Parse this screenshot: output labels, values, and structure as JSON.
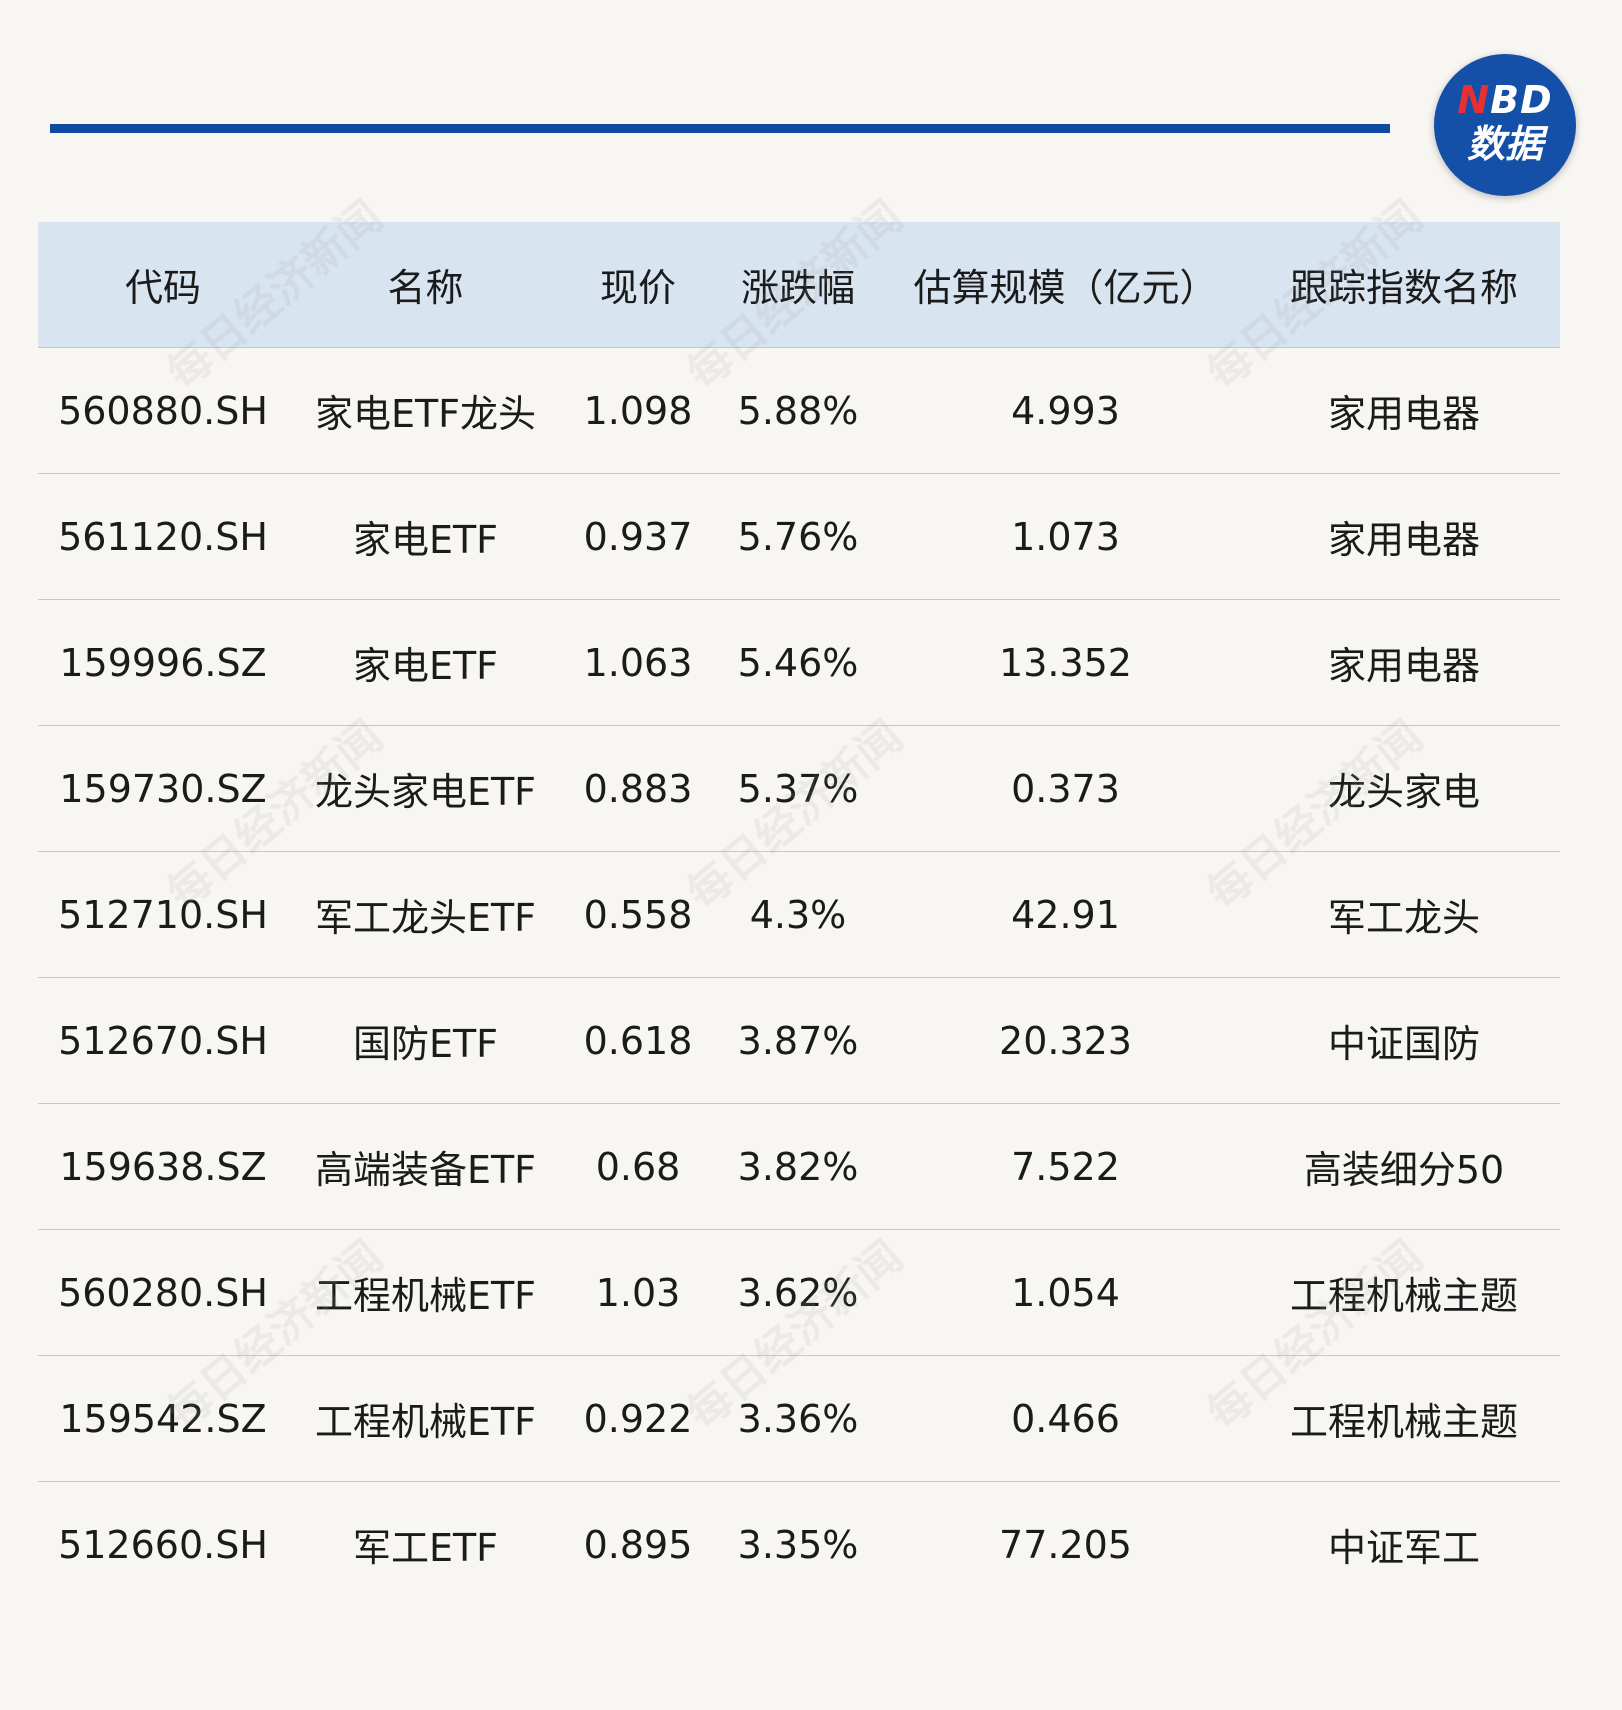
{
  "logo": {
    "line1_n": "N",
    "line1_rest": "BD",
    "line2": "数据"
  },
  "watermark_text": "每日经济新闻",
  "table": {
    "headers": [
      "代码",
      "名称",
      "现价",
      "涨跌幅",
      "估算规模（亿元）",
      "跟踪指数名称"
    ],
    "rows": [
      [
        "560880.SH",
        "家电ETF龙头",
        "1.098",
        "5.88%",
        "4.993",
        "家用电器"
      ],
      [
        "561120.SH",
        "家电ETF",
        "0.937",
        "5.76%",
        "1.073",
        "家用电器"
      ],
      [
        "159996.SZ",
        "家电ETF",
        "1.063",
        "5.46%",
        "13.352",
        "家用电器"
      ],
      [
        "159730.SZ",
        "龙头家电ETF",
        "0.883",
        "5.37%",
        "0.373",
        "龙头家电"
      ],
      [
        "512710.SH",
        "军工龙头ETF",
        "0.558",
        "4.3%",
        "42.91",
        "军工龙头"
      ],
      [
        "512670.SH",
        "国防ETF",
        "0.618",
        "3.87%",
        "20.323",
        "中证国防"
      ],
      [
        "159638.SZ",
        "高端装备ETF",
        "0.68",
        "3.82%",
        "7.522",
        "高装细分50"
      ],
      [
        "560280.SH",
        "工程机械ETF",
        "1.03",
        "3.62%",
        "1.054",
        "工程机械主题"
      ],
      [
        "159542.SZ",
        "工程机械ETF",
        "0.922",
        "3.36%",
        "0.466",
        "工程机械主题"
      ],
      [
        "512660.SH",
        "军工ETF",
        "0.895",
        "3.35%",
        "77.205",
        "中证军工"
      ]
    ]
  }
}
